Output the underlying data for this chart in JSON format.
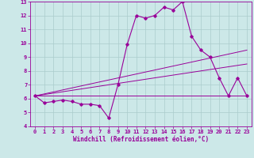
{
  "background_color": "#cce8e8",
  "grid_color": "#aacccc",
  "line_color": "#990099",
  "xlabel": "Windchill (Refroidissement éolien,°C)",
  "xlim": [
    -0.5,
    23.5
  ],
  "ylim": [
    4,
    13
  ],
  "xticks": [
    0,
    1,
    2,
    3,
    4,
    5,
    6,
    7,
    8,
    9,
    10,
    11,
    12,
    13,
    14,
    15,
    16,
    17,
    18,
    19,
    20,
    21,
    22,
    23
  ],
  "yticks": [
    4,
    5,
    6,
    7,
    8,
    9,
    10,
    11,
    12,
    13
  ],
  "main_x": [
    0,
    1,
    2,
    3,
    4,
    5,
    6,
    7,
    8,
    9,
    10,
    11,
    12,
    13,
    14,
    15,
    16,
    17,
    18,
    19,
    20,
    21,
    22,
    23
  ],
  "main_y": [
    6.2,
    5.7,
    5.8,
    5.9,
    5.8,
    5.6,
    5.6,
    5.5,
    4.6,
    7.0,
    9.9,
    12.0,
    11.8,
    12.0,
    12.6,
    12.4,
    13.0,
    10.5,
    9.5,
    9.0,
    7.5,
    6.2,
    7.5,
    6.2
  ],
  "line1_x": [
    0,
    23
  ],
  "line1_y": [
    6.2,
    9.5
  ],
  "line2_x": [
    0,
    23
  ],
  "line2_y": [
    6.2,
    8.5
  ],
  "line3_x": [
    0,
    23
  ],
  "line3_y": [
    6.2,
    6.2
  ],
  "tick_fontsize": 5.0,
  "label_fontsize": 5.5
}
